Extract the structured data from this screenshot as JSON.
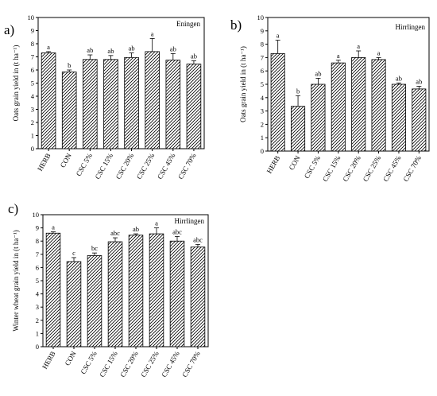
{
  "chart_data": [
    {
      "panel_label": "a)",
      "location": "Eningen",
      "type": "bar",
      "ylabel": "Oats grain yield in (t ha⁻¹)",
      "ylim": [
        0,
        10
      ],
      "yticks": [
        0,
        1,
        2,
        3,
        4,
        5,
        6,
        7,
        8,
        9,
        10
      ],
      "categories": [
        "HERB",
        "CON",
        "CSC 5%",
        "CSC 15%",
        "CSC 20%",
        "CSC 25%",
        "CSC 45%",
        "CSC 70%"
      ],
      "values": [
        7.3,
        5.85,
        6.8,
        6.8,
        6.95,
        7.4,
        6.75,
        6.45
      ],
      "errors": [
        0.1,
        0.15,
        0.35,
        0.3,
        0.35,
        1.0,
        0.5,
        0.25
      ],
      "letters": [
        "a",
        "b",
        "ab",
        "ab",
        "ab",
        "a",
        "ab",
        "ab"
      ],
      "fill_pattern": "diagonal-hatch"
    },
    {
      "panel_label": "b)",
      "location": "Hirrlingen",
      "type": "bar",
      "ylabel": "Oats grain yield in (t ha⁻¹)",
      "ylim": [
        0,
        10
      ],
      "yticks": [
        0,
        1,
        2,
        3,
        4,
        5,
        6,
        7,
        8,
        9,
        10
      ],
      "categories": [
        "HERB",
        "CON",
        "CSC 5%",
        "CSC 15%",
        "CSC 20%",
        "CSC 25%",
        "CSC 45%",
        "CSC 70%"
      ],
      "values": [
        7.3,
        3.35,
        5.0,
        6.6,
        7.0,
        6.85,
        5.0,
        4.65
      ],
      "errors": [
        1.0,
        0.8,
        0.45,
        0.2,
        0.5,
        0.15,
        0.1,
        0.2
      ],
      "letters": [
        "a",
        "b",
        "ab",
        "a",
        "a",
        "a",
        "ab",
        "ab"
      ],
      "fill_pattern": "diagonal-hatch"
    },
    {
      "panel_label": "c)",
      "location": "Hirrlingen",
      "type": "bar",
      "ylabel": "Winter wheat grain yield in (t ha⁻¹)",
      "ylim": [
        0,
        10
      ],
      "yticks": [
        0,
        1,
        2,
        3,
        4,
        5,
        6,
        7,
        8,
        9,
        10
      ],
      "categories": [
        "HERB",
        "CON",
        "CSC 5%",
        "CSC 15%",
        "CSC 20%",
        "CSC 25%",
        "CSC 45%",
        "CSC 70%"
      ],
      "values": [
        8.6,
        6.45,
        6.9,
        7.95,
        8.45,
        8.55,
        8.0,
        7.55
      ],
      "errors": [
        0.1,
        0.3,
        0.2,
        0.3,
        0.1,
        0.45,
        0.35,
        0.2
      ],
      "letters": [
        "a",
        "c",
        "bc",
        "abc",
        "ab",
        "a",
        "abc",
        "abc"
      ],
      "fill_pattern": "diagonal-hatch"
    }
  ]
}
